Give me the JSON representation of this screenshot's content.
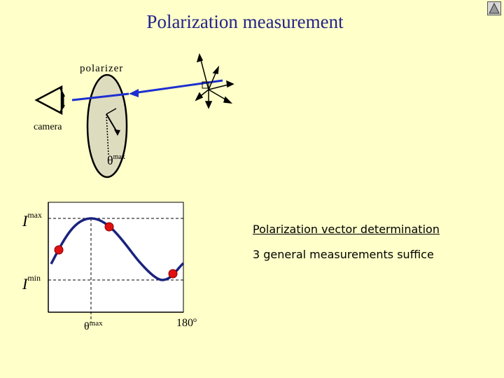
{
  "slide": {
    "title": "Polarization measurement",
    "nav_icon": "triangle-nav-icon"
  },
  "diagram": {
    "polarizer_label": "polarizer",
    "camera_label": "camera",
    "theta_symbol": "θ",
    "theta_sup": "max"
  },
  "graph": {
    "imax_symbol": "I",
    "imax_sup": "max",
    "imin_symbol": "I",
    "imin_sup": "min",
    "x_theta_symbol": "θ",
    "x_theta_sup": "max",
    "x_end_label": "180",
    "x_end_sup": "o"
  },
  "text": {
    "vector_determination": "Polarization vector  determination",
    "three_measurements": "3 general measurements suffice"
  },
  "colors": {
    "background": "#ffffc9",
    "beam": "#1c2fd0",
    "curve": "#1a237e",
    "points": "#e01010",
    "polarizer_fill": "#dedcbf"
  }
}
